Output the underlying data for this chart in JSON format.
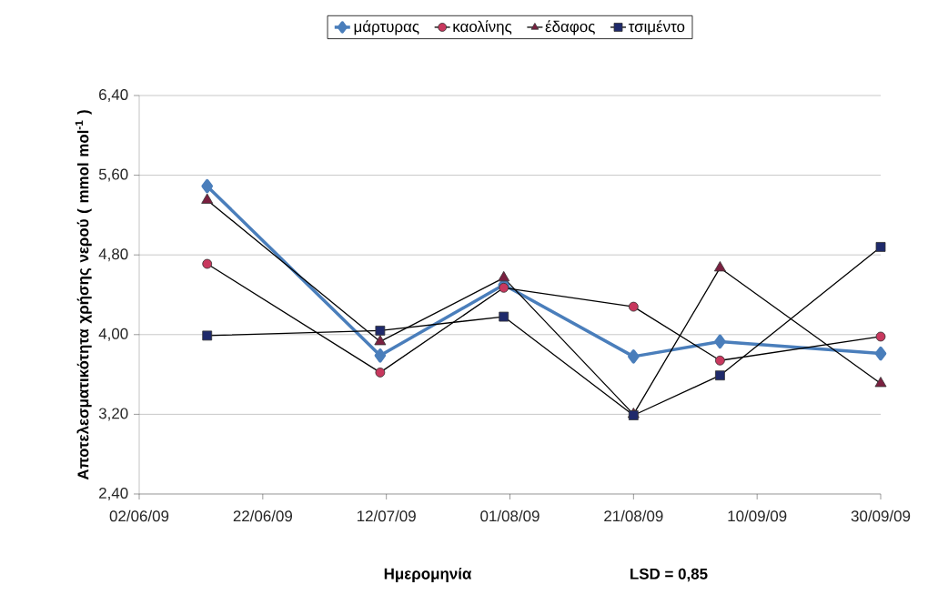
{
  "chart_data": {
    "type": "line",
    "xlabel": "Ημερομηνία",
    "ylabel": "Αποτελεσματικότητα χρήσης νερού ( mmol mol$^{-1}$ )",
    "annotations": [
      "LSD = 0,85"
    ],
    "x": [
      "2009-06-13",
      "2009-07-11",
      "2009-07-31",
      "2009-08-21",
      "2009-09-04",
      "2009-09-30"
    ],
    "series": [
      {
        "name": "μάρτυρας",
        "color": "#4a7ebb",
        "marker": "diamond",
        "values": [
          5.49,
          3.79,
          4.5,
          3.78,
          3.93,
          3.81
        ]
      },
      {
        "name": "καολίνης",
        "color": "#c8385e",
        "marker": "circle",
        "values": [
          4.71,
          3.62,
          4.47,
          4.28,
          3.74,
          3.98
        ]
      },
      {
        "name": "έδαφος",
        "color": "#7a2040",
        "marker": "triangle",
        "values": [
          5.35,
          3.93,
          4.57,
          3.2,
          4.67,
          3.51
        ]
      },
      {
        "name": "τσιμέντο",
        "color": "#1f2a6b",
        "marker": "square",
        "values": [
          3.99,
          4.04,
          4.18,
          3.19,
          3.59,
          4.88
        ]
      }
    ],
    "xlim": [
      "2009-06-02",
      "2009-09-30"
    ],
    "xticks": [
      {
        "value": "2009-06-02",
        "label": "02/06/09"
      },
      {
        "value": "2009-06-22",
        "label": "22/06/09"
      },
      {
        "value": "2009-07-12",
        "label": "12/07/09"
      },
      {
        "value": "2009-08-01",
        "label": "01/08/09"
      },
      {
        "value": "2009-08-21",
        "label": "21/08/09"
      },
      {
        "value": "2009-09-10",
        "label": "10/09/09"
      },
      {
        "value": "2009-09-30",
        "label": "30/09/09"
      }
    ],
    "ylim": [
      2.4,
      6.4
    ],
    "yticks": [
      {
        "value": 2.4,
        "label": "2,40"
      },
      {
        "value": 3.2,
        "label": "3,20"
      },
      {
        "value": 4.0,
        "label": "4,00"
      },
      {
        "value": 4.8,
        "label": "4,80"
      },
      {
        "value": 5.6,
        "label": "5,60"
      },
      {
        "value": 6.4,
        "label": "6,40"
      }
    ],
    "grid": "y",
    "legend": "top"
  }
}
